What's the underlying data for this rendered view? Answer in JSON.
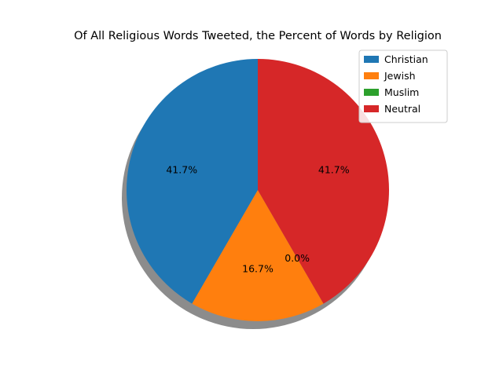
{
  "chart_data": {
    "type": "pie",
    "title": "Of All Religious Words Tweeted, the Percent of Words by Religion",
    "labels": [
      "Christian",
      "Jewish",
      "Muslim",
      "Neutral"
    ],
    "values": [
      41.7,
      16.7,
      0.0,
      41.7
    ],
    "value_labels": [
      "41.7%",
      "16.7%",
      "0.0%",
      "41.7%"
    ],
    "colors": [
      "#1f77b4",
      "#ff7f0e",
      "#2ca02c",
      "#d62728"
    ],
    "start_angle_deg": 90,
    "direction": "counterclockwise",
    "shadow": true,
    "legend": {
      "placement": "top-right",
      "entries": [
        "Christian",
        "Jewish",
        "Muslim",
        "Neutral"
      ]
    }
  }
}
